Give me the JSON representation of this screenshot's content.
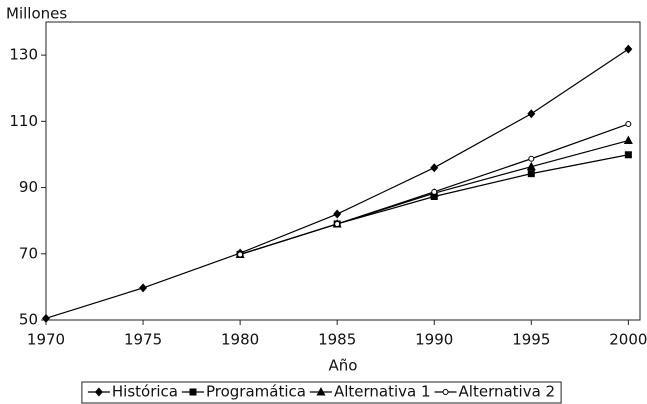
{
  "chart_data": {
    "type": "line",
    "ylabel": "Millones",
    "xlabel": "Año",
    "x": [
      1970,
      1975,
      1980,
      1985,
      1990,
      1995,
      2000
    ],
    "series": [
      {
        "name": "Histórica",
        "color": "#000000",
        "marker": "diamond",
        "values": [
          50.5,
          59.7,
          70.2,
          82.0,
          96.0,
          112.3,
          131.8
        ]
      },
      {
        "name": "Programática",
        "color": "#000000",
        "marker": "square",
        "values": [
          null,
          null,
          69.8,
          79.0,
          87.3,
          94.2,
          99.9
        ]
      },
      {
        "name": "Alternativa 1",
        "color": "#000000",
        "marker": "triangle",
        "values": [
          null,
          null,
          69.8,
          79.0,
          88.3,
          96.3,
          104.2
        ]
      },
      {
        "name": "Alternativa 2",
        "color": "#000000",
        "marker": "circle",
        "values": [
          null,
          null,
          69.8,
          79.0,
          88.7,
          98.7,
          109.2
        ]
      }
    ],
    "xlim": [
      1970,
      2000.6
    ],
    "xticks": [
      1970,
      1975,
      1980,
      1985,
      1990,
      1995,
      2000
    ],
    "ylim": [
      50,
      140
    ],
    "yticks": [
      50,
      70,
      90,
      110,
      130
    ],
    "legend": "bottom"
  }
}
